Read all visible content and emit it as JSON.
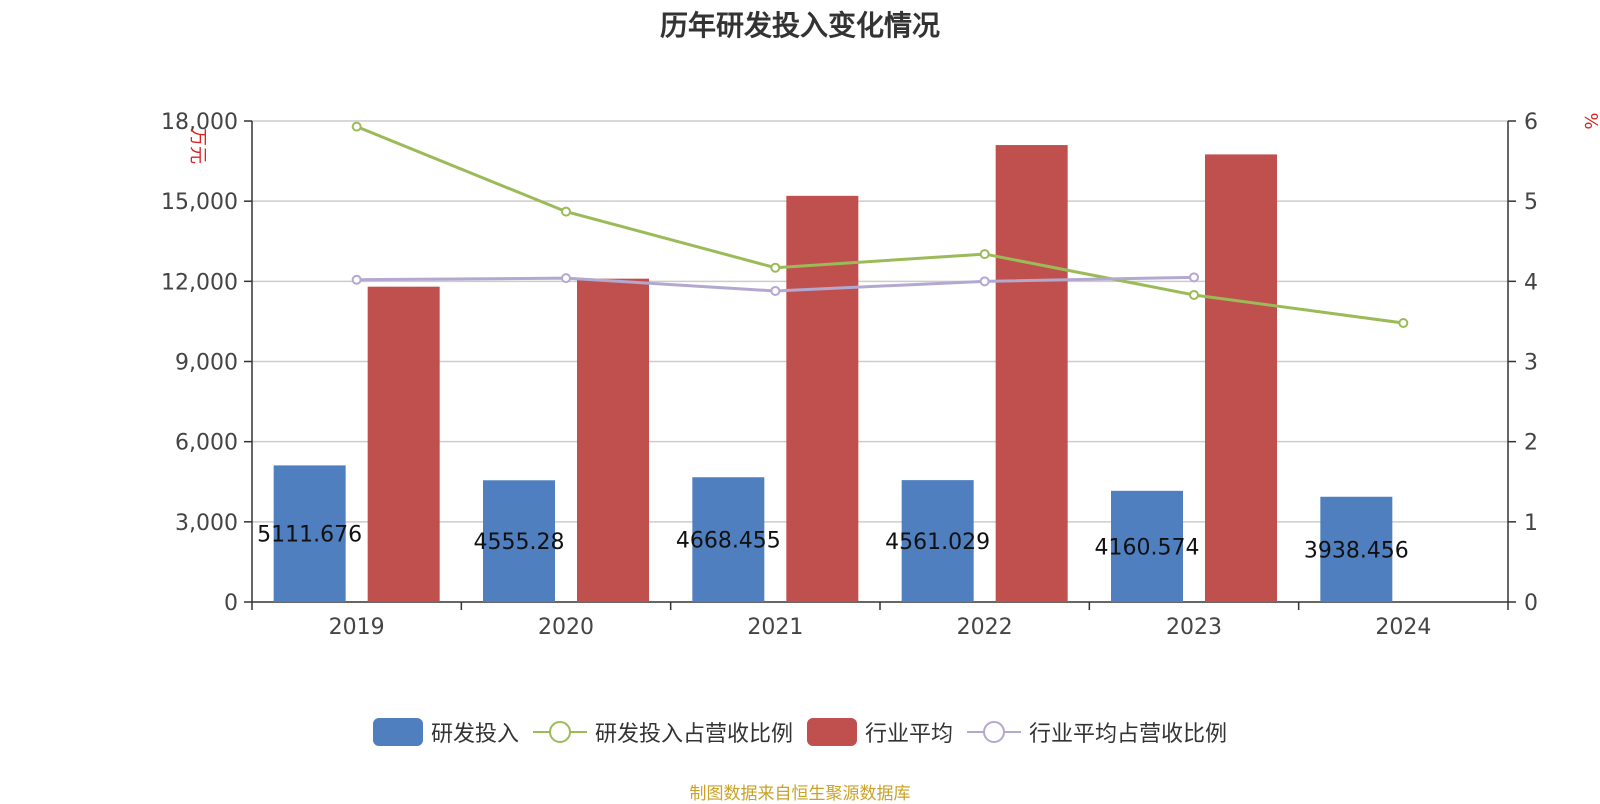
{
  "chart_data": {
    "type": "bar",
    "title": "历年研发投入变化情况",
    "categories": [
      "2019",
      "2020",
      "2021",
      "2022",
      "2023",
      "2024"
    ],
    "y_left": {
      "unit": "万元",
      "ylim": [
        0,
        18000
      ],
      "ticks": [
        "0",
        "3,000",
        "6,000",
        "9,000",
        "12,000",
        "15,000",
        "18,000"
      ]
    },
    "y_right": {
      "unit": "%",
      "ylim": [
        0,
        6
      ],
      "ticks": [
        "0",
        "1",
        "2",
        "3",
        "4",
        "5",
        "6"
      ]
    },
    "grid": true,
    "legend_position": "bottom",
    "series": [
      {
        "name": "研发投入",
        "kind": "bar",
        "axis": "left",
        "color": "#4f7fbf",
        "values": [
          5111.676,
          4555.28,
          4668.455,
          4561.029,
          4160.574,
          3938.456
        ],
        "labels": [
          "5111.676",
          "4555.28",
          "4668.455",
          "4561.029",
          "4160.574",
          "3938.456"
        ]
      },
      {
        "name": "研发投入占营收比例",
        "kind": "line",
        "axis": "right",
        "color": "#9bbb59",
        "values": [
          5.93,
          4.87,
          4.17,
          4.34,
          3.83,
          3.48
        ]
      },
      {
        "name": "行业平均",
        "kind": "bar",
        "axis": "left",
        "color": "#c0504d",
        "values": [
          11800,
          12100,
          15200,
          17100,
          16750,
          null
        ]
      },
      {
        "name": "行业平均占营收比例",
        "kind": "line",
        "axis": "right",
        "color": "#b3a8cf",
        "values": [
          4.02,
          4.04,
          3.88,
          4.0,
          4.05,
          null
        ]
      }
    ]
  },
  "source_note": "制图数据来自恒生聚源数据库"
}
